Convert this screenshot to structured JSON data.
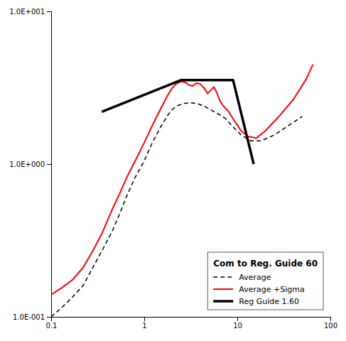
{
  "chart_data": {
    "type": "line",
    "title": "Com to Reg. Guide 60",
    "log": true,
    "grid": false,
    "legend": "lower right",
    "xlim": [
      0.1,
      100
    ],
    "ylim": [
      0.1,
      10
    ],
    "xticks": [
      0.1,
      1,
      10,
      100
    ],
    "yticks": [
      {
        "value": 0.1,
        "label": "1.0E-001"
      },
      {
        "value": 1.0,
        "label": "1.0E+000"
      },
      {
        "value": 10.0,
        "label": "1.0E+001"
      }
    ],
    "series": [
      {
        "name": "Average",
        "color": "#000000",
        "line_style": "dashed",
        "x": [
          0.1,
          0.13,
          0.17,
          0.22,
          0.28,
          0.35,
          0.45,
          0.55,
          0.65,
          0.8,
          1.0,
          1.2,
          1.5,
          1.8,
          2.0,
          2.3,
          2.7,
          3.2,
          3.8,
          4.5,
          5.5,
          6.5,
          7.5,
          9.0,
          11.0,
          14.0,
          18.0,
          25.0,
          35.0,
          50.0
        ],
        "values": [
          0.1,
          0.115,
          0.135,
          0.16,
          0.21,
          0.27,
          0.36,
          0.48,
          0.62,
          0.82,
          1.05,
          1.35,
          1.75,
          2.1,
          2.28,
          2.42,
          2.5,
          2.52,
          2.48,
          2.38,
          2.22,
          2.1,
          1.98,
          1.75,
          1.55,
          1.42,
          1.42,
          1.55,
          1.78,
          2.05
        ]
      },
      {
        "name": "Average +Sigma",
        "color": "#ff0000",
        "line_style": "solid",
        "x": [
          0.1,
          0.13,
          0.17,
          0.22,
          0.28,
          0.35,
          0.45,
          0.55,
          0.65,
          0.8,
          1.0,
          1.2,
          1.5,
          1.8,
          2.0,
          2.2,
          2.5,
          2.8,
          3.0,
          3.3,
          3.6,
          4.0,
          4.4,
          4.8,
          5.2,
          5.6,
          6.0,
          6.5,
          7.0,
          7.5,
          8.0,
          9.0,
          10.0,
          11.0,
          13.0,
          16.0,
          20.0,
          28.0,
          40.0,
          55.0,
          65.0
        ],
        "values": [
          0.14,
          0.155,
          0.175,
          0.21,
          0.27,
          0.35,
          0.5,
          0.65,
          0.82,
          1.05,
          1.38,
          1.75,
          2.3,
          2.85,
          3.15,
          3.35,
          3.48,
          3.42,
          3.3,
          3.25,
          3.38,
          3.35,
          3.15,
          2.9,
          3.05,
          3.2,
          2.95,
          2.6,
          2.42,
          2.32,
          2.22,
          1.98,
          1.8,
          1.65,
          1.52,
          1.48,
          1.65,
          2.05,
          2.65,
          3.6,
          4.5
        ]
      },
      {
        "name": "Reg Guide 1.60",
        "color": "#000000",
        "line_style": "solid",
        "x": [
          0.35,
          2.5,
          9.0,
          15.0
        ],
        "values": [
          2.2,
          3.55,
          3.55,
          1.0
        ]
      }
    ]
  }
}
